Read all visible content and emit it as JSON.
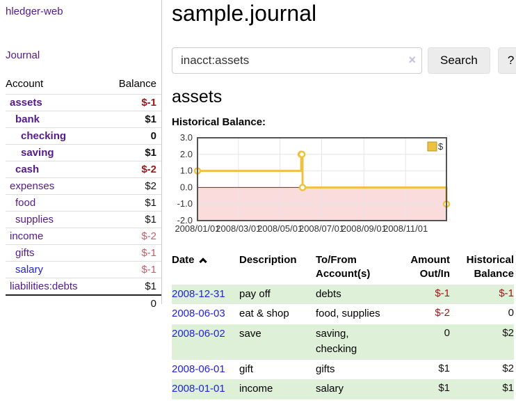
{
  "app": {
    "brand": "hledger-web"
  },
  "sidebar": {
    "nav_journal": "Journal",
    "table": {
      "account_header": "Account",
      "balance_header": "Balance",
      "rows": [
        {
          "name": "assets",
          "indent": 1,
          "bold": true,
          "link": "purple",
          "balance": "$-1",
          "bal_class": "neg"
        },
        {
          "name": "bank",
          "indent": 2,
          "bold": true,
          "link": "purple",
          "balance": "$1",
          "bal_class": "pos"
        },
        {
          "name": "checking",
          "indent": 3,
          "bold": true,
          "link": "purple",
          "balance": "0",
          "bal_class": "pos"
        },
        {
          "name": "saving",
          "indent": 3,
          "bold": true,
          "link": "purple",
          "balance": "$1",
          "bal_class": "pos"
        },
        {
          "name": "cash",
          "indent": 2,
          "bold": true,
          "link": "purple",
          "balance": "$-2",
          "bal_class": "neg"
        },
        {
          "name": "expenses",
          "indent": 1,
          "bold": false,
          "link": "purple",
          "balance": "$2",
          "bal_class": "pos"
        },
        {
          "name": "food",
          "indent": 2,
          "bold": false,
          "link": "purple",
          "balance": "$1",
          "bal_class": "pos"
        },
        {
          "name": "supplies",
          "indent": 2,
          "bold": false,
          "link": "purple",
          "balance": "$1",
          "bal_class": "pos"
        },
        {
          "name": "income",
          "indent": 1,
          "bold": false,
          "link": "purple",
          "balance": "$-2",
          "bal_class": "neg-soft"
        },
        {
          "name": "gifts",
          "indent": 2,
          "bold": false,
          "link": "purple",
          "balance": "$-1",
          "bal_class": "neg-soft"
        },
        {
          "name": "salary",
          "indent": 2,
          "bold": false,
          "link": "blue",
          "balance": "$-1",
          "bal_class": "neg-soft"
        },
        {
          "name": "liabilities:debts",
          "indent": 1,
          "bold": false,
          "link": "purple",
          "balance": "$1",
          "bal_class": "pos"
        }
      ],
      "total": "0"
    }
  },
  "header": {
    "title": "sample.journal"
  },
  "search": {
    "value": "inacct:assets",
    "clear_icon": "×",
    "button_label": "Search",
    "help_label": "?"
  },
  "account_page": {
    "title": "assets",
    "chart_label": "Historical Balance:"
  },
  "chart_data": {
    "type": "line",
    "title": "Historical Balance:",
    "legend": [
      {
        "label": "$",
        "color": "#edc240"
      }
    ],
    "x_range": [
      "2008-01-01",
      "2008-12-31"
    ],
    "ylim": [
      -2.0,
      3.0
    ],
    "y_ticks": [
      3.0,
      2.0,
      1.0,
      0.0,
      -1.0,
      -2.0
    ],
    "x_ticks": [
      {
        "date": "2008-01-01",
        "label": "2008/01/01"
      },
      {
        "date": "2008-03-01",
        "label": "2008/03/01"
      },
      {
        "date": "2008-05-01",
        "label": "2008/05/01"
      },
      {
        "date": "2008-07-01",
        "label": "2008/07/01"
      },
      {
        "date": "2008-09-01",
        "label": "2008/09/01"
      },
      {
        "date": "2008-11-01",
        "label": "2008/11/01"
      }
    ],
    "series": [
      {
        "name": "$",
        "step": true,
        "points": [
          {
            "date": "2008-01-01",
            "value": 1
          },
          {
            "date": "2008-06-01",
            "value": 2
          },
          {
            "date": "2008-06-02",
            "value": 2
          },
          {
            "date": "2008-06-03",
            "value": 0
          },
          {
            "date": "2008-12-31",
            "value": -1
          }
        ]
      }
    ],
    "grid": true,
    "legend_position": "top-right",
    "line_color": "#edc240",
    "zero_line_color": "#8b1d1d",
    "negative_region_color": "#fbdcdc",
    "border_color": "#545454"
  },
  "register": {
    "columns": {
      "date": {
        "label": "Date"
      },
      "description": {
        "label": "Description"
      },
      "accounts": {
        "line1": "To/From",
        "line2": "Account(s)"
      },
      "amount": {
        "line1": "Amount",
        "line2": "Out/In"
      },
      "balance": {
        "line1": "Historical",
        "line2": "Balance"
      }
    },
    "rows": [
      {
        "date": "2008-12-31",
        "description": "pay off",
        "accounts": "debts",
        "amount": "$-1",
        "amount_neg": true,
        "balance": "$-1",
        "balance_neg": true
      },
      {
        "date": "2008-06-03",
        "description": "eat & shop",
        "accounts": "food, supplies",
        "amount": "$-2",
        "amount_neg": true,
        "balance": "0",
        "balance_neg": false
      },
      {
        "date": "2008-06-02",
        "description": "save",
        "accounts": "saving, checking",
        "amount": "0",
        "amount_neg": false,
        "balance": "$2",
        "balance_neg": false
      },
      {
        "date": "2008-06-01",
        "description": "gift",
        "accounts": "gifts",
        "amount": "$1",
        "amount_neg": false,
        "balance": "$2",
        "balance_neg": false
      },
      {
        "date": "2008-01-01",
        "description": "income",
        "accounts": "salary",
        "amount": "$1",
        "amount_neg": false,
        "balance": "$1",
        "balance_neg": false
      }
    ]
  }
}
